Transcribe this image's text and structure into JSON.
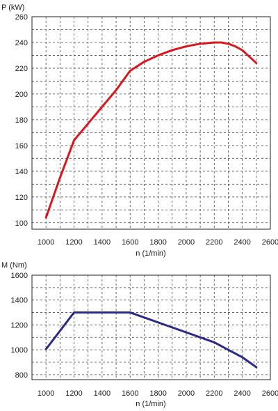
{
  "chart_data": [
    {
      "type": "line",
      "ylabel": "P (kW)",
      "xlabel": "n (1/min)",
      "xlim": [
        900,
        2600
      ],
      "ylim": [
        95,
        260
      ],
      "x_ticks": [
        "1000",
        "1200",
        "1400",
        "1600",
        "1800",
        "2000",
        "2200",
        "2400",
        "2600"
      ],
      "y_ticks": [
        "100",
        "120",
        "140",
        "160",
        "180",
        "200",
        "220",
        "240",
        "260"
      ],
      "series": [
        {
          "color": "#d7191f",
          "x": [
            1000,
            1100,
            1200,
            1300,
            1400,
            1500,
            1600,
            1700,
            1800,
            1900,
            2000,
            2100,
            2200,
            2250,
            2300,
            2350,
            2400,
            2450,
            2500
          ],
          "y": [
            104,
            135,
            164,
            177,
            190,
            203,
            218,
            225,
            230,
            234,
            237,
            239,
            240,
            240,
            239,
            237,
            234,
            229,
            224
          ]
        }
      ],
      "grid": true
    },
    {
      "type": "line",
      "ylabel": "M (Nm)",
      "xlabel": "n (1/min)",
      "xlim": [
        900,
        2600
      ],
      "ylim": [
        760,
        1600
      ],
      "x_ticks": [
        "1000",
        "1200",
        "1400",
        "1600",
        "1800",
        "2000",
        "2200",
        "2400",
        "2600"
      ],
      "y_ticks": [
        "800",
        "1000",
        "1200",
        "1400",
        "1600"
      ],
      "series": [
        {
          "color": "#2a2a84",
          "x": [
            1000,
            1200,
            1400,
            1600,
            1800,
            2000,
            2200,
            2300,
            2400,
            2500
          ],
          "y": [
            1005,
            1300,
            1300,
            1300,
            1220,
            1140,
            1060,
            1000,
            940,
            860
          ]
        }
      ],
      "grid": true
    }
  ]
}
